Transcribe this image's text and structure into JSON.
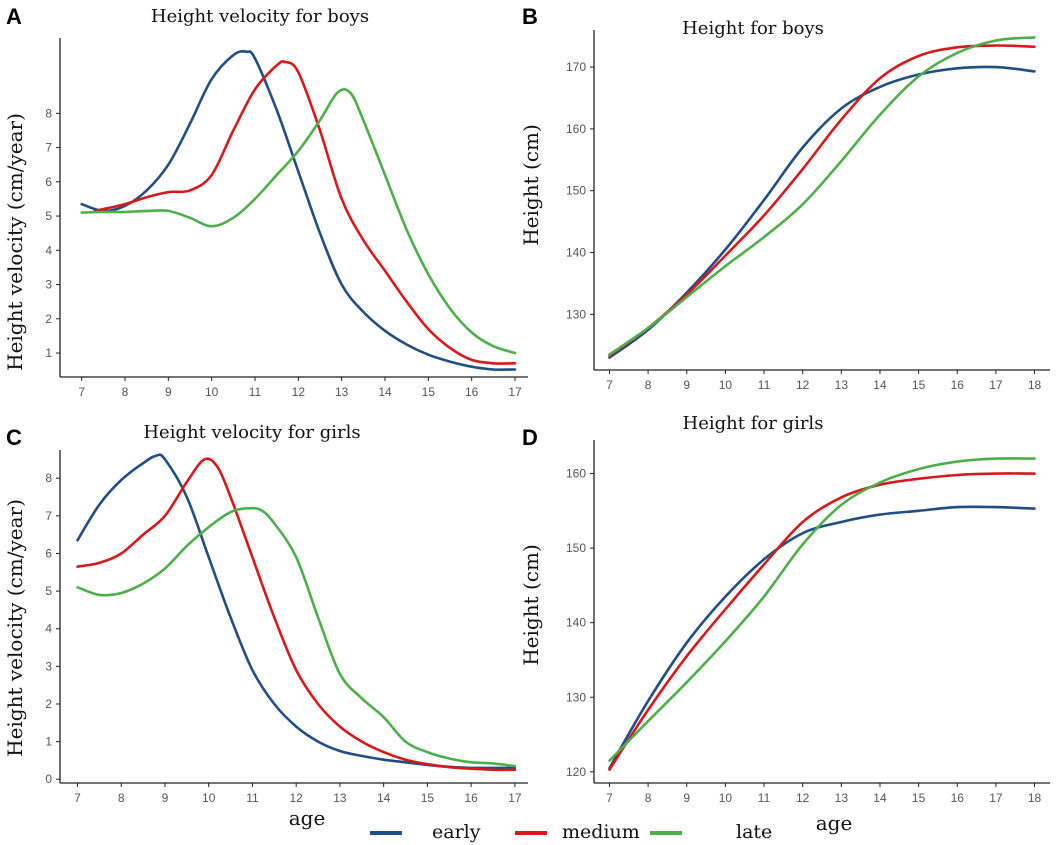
{
  "colors": {
    "early": "#1f4e86",
    "medium": "#d7191c",
    "late": "#4daf4a"
  },
  "legend": [
    {
      "key": "early",
      "label": "early"
    },
    {
      "key": "medium",
      "label": "medium"
    },
    {
      "key": "late",
      "label": "late"
    }
  ],
  "bottom_xlabel": "age",
  "chart_data": [
    {
      "id": "A",
      "letter": "A",
      "type": "line",
      "title": "Height velocity for boys",
      "xlabel": "",
      "ylabel": "Height velocity (cm/year)",
      "xlim": [
        6.5,
        17.3
      ],
      "ylim": [
        0.3,
        10.2
      ],
      "xticks": [
        7,
        8,
        9,
        10,
        11,
        12,
        13,
        14,
        15,
        16,
        17
      ],
      "yticks": [
        1,
        2,
        3,
        4,
        5,
        6,
        7,
        8
      ],
      "series": [
        {
          "name": "early",
          "points": [
            [
              7,
              5.35
            ],
            [
              7.5,
              5.15
            ],
            [
              8,
              5.3
            ],
            [
              8.5,
              5.75
            ],
            [
              9,
              6.5
            ],
            [
              9.5,
              7.7
            ],
            [
              10,
              9.0
            ],
            [
              10.5,
              9.7
            ],
            [
              10.8,
              9.8
            ],
            [
              11,
              9.6
            ],
            [
              11.5,
              8.1
            ],
            [
              12,
              6.3
            ],
            [
              12.5,
              4.5
            ],
            [
              13,
              3.0
            ],
            [
              13.5,
              2.2
            ],
            [
              14,
              1.65
            ],
            [
              14.5,
              1.25
            ],
            [
              15,
              0.95
            ],
            [
              15.5,
              0.75
            ],
            [
              16,
              0.6
            ],
            [
              16.5,
              0.52
            ],
            [
              17,
              0.52
            ]
          ]
        },
        {
          "name": "medium",
          "points": [
            [
              7.3,
              5.15
            ],
            [
              8,
              5.35
            ],
            [
              8.5,
              5.55
            ],
            [
              9,
              5.7
            ],
            [
              9.5,
              5.75
            ],
            [
              10,
              6.2
            ],
            [
              10.5,
              7.5
            ],
            [
              11,
              8.7
            ],
            [
              11.5,
              9.4
            ],
            [
              11.7,
              9.5
            ],
            [
              12,
              9.2
            ],
            [
              12.5,
              7.5
            ],
            [
              13,
              5.5
            ],
            [
              13.5,
              4.3
            ],
            [
              14,
              3.4
            ],
            [
              14.5,
              2.5
            ],
            [
              15,
              1.7
            ],
            [
              15.5,
              1.15
            ],
            [
              16,
              0.8
            ],
            [
              16.5,
              0.7
            ],
            [
              17,
              0.7
            ]
          ]
        },
        {
          "name": "late",
          "points": [
            [
              7,
              5.1
            ],
            [
              7.5,
              5.12
            ],
            [
              8,
              5.12
            ],
            [
              8.5,
              5.15
            ],
            [
              9,
              5.15
            ],
            [
              9.5,
              4.95
            ],
            [
              10,
              4.7
            ],
            [
              10.5,
              4.95
            ],
            [
              11,
              5.5
            ],
            [
              11.5,
              6.2
            ],
            [
              12,
              6.9
            ],
            [
              12.5,
              7.8
            ],
            [
              12.9,
              8.6
            ],
            [
              13.2,
              8.6
            ],
            [
              13.5,
              7.8
            ],
            [
              14,
              6.2
            ],
            [
              14.5,
              4.6
            ],
            [
              15,
              3.3
            ],
            [
              15.5,
              2.3
            ],
            [
              16,
              1.6
            ],
            [
              16.5,
              1.2
            ],
            [
              17,
              1.0
            ]
          ]
        }
      ]
    },
    {
      "id": "B",
      "letter": "B",
      "type": "line",
      "title": "Height for boys",
      "xlabel": "",
      "ylabel": "Height (cm)",
      "xlim": [
        6.6,
        18.4
      ],
      "ylim": [
        121,
        176
      ],
      "xticks": [
        7,
        8,
        9,
        10,
        11,
        12,
        13,
        14,
        15,
        16,
        17,
        18
      ],
      "yticks": [
        130,
        140,
        150,
        160,
        170
      ],
      "series": [
        {
          "name": "early",
          "points": [
            [
              7,
              123
            ],
            [
              8,
              127.5
            ],
            [
              9,
              133.5
            ],
            [
              10,
              140.5
            ],
            [
              11,
              148.5
            ],
            [
              12,
              157
            ],
            [
              13,
              163.3
            ],
            [
              14,
              166.8
            ],
            [
              15,
              168.8
            ],
            [
              16,
              169.8
            ],
            [
              17,
              170
            ],
            [
              18,
              169.3
            ]
          ]
        },
        {
          "name": "medium",
          "points": [
            [
              7,
              123.3
            ],
            [
              8,
              127.8
            ],
            [
              9,
              133.2
            ],
            [
              10,
              139.5
            ],
            [
              11,
              146
            ],
            [
              12,
              153.5
            ],
            [
              13,
              161.5
            ],
            [
              14,
              168.2
            ],
            [
              15,
              171.8
            ],
            [
              16,
              173.2
            ],
            [
              17,
              173.5
            ],
            [
              18,
              173.3
            ]
          ]
        },
        {
          "name": "late",
          "points": [
            [
              7,
              123.5
            ],
            [
              8,
              127.8
            ],
            [
              9,
              132.8
            ],
            [
              10,
              137.8
            ],
            [
              11,
              142.5
            ],
            [
              12,
              147.8
            ],
            [
              13,
              154.8
            ],
            [
              14,
              162.3
            ],
            [
              15,
              168.5
            ],
            [
              16,
              172.3
            ],
            [
              17,
              174.3
            ],
            [
              18,
              174.8
            ]
          ]
        }
      ]
    },
    {
      "id": "C",
      "letter": "C",
      "type": "line",
      "title": "Height velocity for girls",
      "xlabel": "",
      "ylabel": "Height velocity (cm/year)",
      "xlim": [
        6.6,
        17.3
      ],
      "ylim": [
        -0.1,
        8.75
      ],
      "xticks": [
        7,
        8,
        9,
        10,
        11,
        12,
        13,
        14,
        15,
        16,
        17
      ],
      "yticks": [
        0,
        1,
        2,
        3,
        4,
        5,
        6,
        7,
        8
      ],
      "series": [
        {
          "name": "early",
          "points": [
            [
              7,
              6.35
            ],
            [
              7.5,
              7.3
            ],
            [
              8,
              7.95
            ],
            [
              8.5,
              8.4
            ],
            [
              8.8,
              8.6
            ],
            [
              9,
              8.5
            ],
            [
              9.5,
              7.5
            ],
            [
              10,
              5.9
            ],
            [
              10.5,
              4.3
            ],
            [
              11,
              2.9
            ],
            [
              11.5,
              2.0
            ],
            [
              12,
              1.4
            ],
            [
              12.5,
              1.0
            ],
            [
              13,
              0.75
            ],
            [
              13.5,
              0.62
            ],
            [
              14,
              0.52
            ],
            [
              14.5,
              0.45
            ],
            [
              15,
              0.38
            ],
            [
              15.5,
              0.33
            ],
            [
              16,
              0.3
            ],
            [
              16.5,
              0.3
            ],
            [
              17,
              0.3
            ]
          ]
        },
        {
          "name": "medium",
          "points": [
            [
              7,
              5.65
            ],
            [
              7.5,
              5.75
            ],
            [
              8,
              6.0
            ],
            [
              8.5,
              6.5
            ],
            [
              9,
              7.0
            ],
            [
              9.5,
              7.9
            ],
            [
              9.9,
              8.5
            ],
            [
              10.2,
              8.3
            ],
            [
              10.5,
              7.5
            ],
            [
              11,
              5.9
            ],
            [
              11.5,
              4.3
            ],
            [
              12,
              2.9
            ],
            [
              12.5,
              2.0
            ],
            [
              13,
              1.4
            ],
            [
              13.5,
              1.0
            ],
            [
              14,
              0.72
            ],
            [
              14.5,
              0.52
            ],
            [
              15,
              0.4
            ],
            [
              15.5,
              0.32
            ],
            [
              16,
              0.28
            ],
            [
              16.5,
              0.25
            ],
            [
              17,
              0.25
            ]
          ]
        },
        {
          "name": "late",
          "points": [
            [
              7,
              5.1
            ],
            [
              7.5,
              4.9
            ],
            [
              8,
              4.95
            ],
            [
              8.5,
              5.2
            ],
            [
              9,
              5.6
            ],
            [
              9.5,
              6.2
            ],
            [
              10,
              6.7
            ],
            [
              10.5,
              7.1
            ],
            [
              10.9,
              7.2
            ],
            [
              11.2,
              7.15
            ],
            [
              11.5,
              6.8
            ],
            [
              12,
              5.9
            ],
            [
              12.5,
              4.3
            ],
            [
              13,
              2.8
            ],
            [
              13.5,
              2.15
            ],
            [
              14,
              1.65
            ],
            [
              14.5,
              1.0
            ],
            [
              15,
              0.72
            ],
            [
              15.5,
              0.55
            ],
            [
              16,
              0.45
            ],
            [
              16.5,
              0.42
            ],
            [
              17,
              0.35
            ]
          ]
        }
      ]
    },
    {
      "id": "D",
      "letter": "D",
      "type": "line",
      "title": "Height for girls",
      "xlabel": "age",
      "ylabel": "Height (cm)",
      "xlim": [
        6.6,
        18.4
      ],
      "ylim": [
        118.5,
        164.5
      ],
      "xticks": [
        7,
        8,
        9,
        10,
        11,
        12,
        13,
        14,
        15,
        16,
        17,
        18
      ],
      "yticks": [
        120,
        130,
        140,
        150,
        160
      ],
      "series": [
        {
          "name": "early",
          "points": [
            [
              7,
              120.5
            ],
            [
              8,
              129.5
            ],
            [
              9,
              137.3
            ],
            [
              10,
              143.5
            ],
            [
              11,
              148.5
            ],
            [
              12,
              152
            ],
            [
              13,
              153.5
            ],
            [
              14,
              154.5
            ],
            [
              15,
              155
            ],
            [
              16,
              155.5
            ],
            [
              17,
              155.5
            ],
            [
              18,
              155.3
            ]
          ]
        },
        {
          "name": "medium",
          "points": [
            [
              7,
              120.3
            ],
            [
              8,
              128.3
            ],
            [
              9,
              135.5
            ],
            [
              10,
              141.8
            ],
            [
              11,
              147.8
            ],
            [
              12,
              153.5
            ],
            [
              13,
              156.8
            ],
            [
              14,
              158.5
            ],
            [
              15,
              159.3
            ],
            [
              16,
              159.8
            ],
            [
              17,
              160
            ],
            [
              18,
              160
            ]
          ]
        },
        {
          "name": "late",
          "points": [
            [
              7,
              121.5
            ],
            [
              8,
              126.8
            ],
            [
              9,
              132
            ],
            [
              10,
              137.5
            ],
            [
              11,
              143.5
            ],
            [
              12,
              150.5
            ],
            [
              13,
              155.8
            ],
            [
              14,
              158.8
            ],
            [
              15,
              160.6
            ],
            [
              16,
              161.6
            ],
            [
              17,
              162
            ],
            [
              18,
              162
            ]
          ]
        }
      ]
    }
  ]
}
